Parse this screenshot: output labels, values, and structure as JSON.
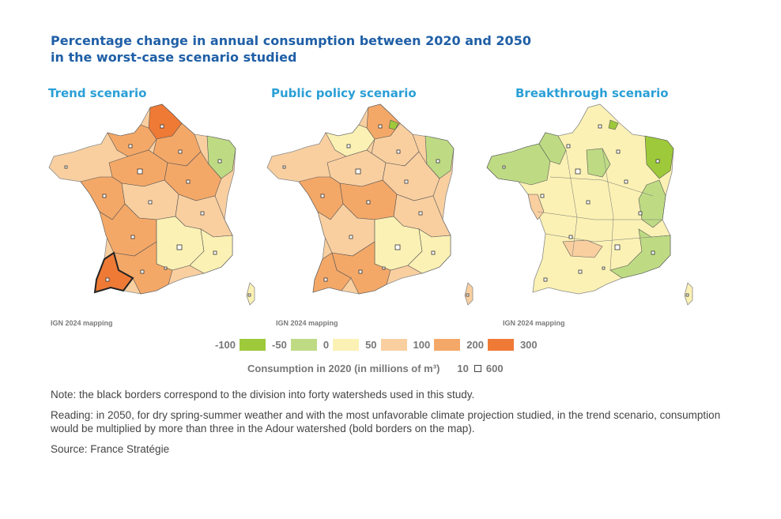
{
  "title": {
    "line1": "Percentage change in annual consumption between 2020 and 2050",
    "line2": "in the worst-case scenario studied"
  },
  "maps": [
    {
      "title": "Trend scenario",
      "credit": "IGN 2024 mapping"
    },
    {
      "title": "Public policy scenario",
      "credit": "IGN 2024 mapping"
    },
    {
      "title": "Breakthrough scenario",
      "credit": "IGN 2024 mapping"
    }
  ],
  "legend": {
    "labels": [
      "-100",
      "-50",
      "0",
      "50",
      "100",
      "200",
      "300"
    ],
    "colors": [
      "#9dc93a",
      "#bedb84",
      "#fbf1b4",
      "#f9cfa0",
      "#f4a868",
      "#ef7a35"
    ]
  },
  "consumption": {
    "label": "Consumption in 2020 (in millions of m³)",
    "min": "10",
    "max": "600"
  },
  "notes": {
    "note": "Note: the black borders correspond to the division into forty watersheds used in this study.",
    "reading": "Reading: in 2050, for dry spring-summer weather and with the most unfavorable climate projection studied, in the trend scenario, consumption would be multiplied by more than three in the Adour watershed (bold borders on the map).",
    "source": "Source: France Stratégie"
  }
}
